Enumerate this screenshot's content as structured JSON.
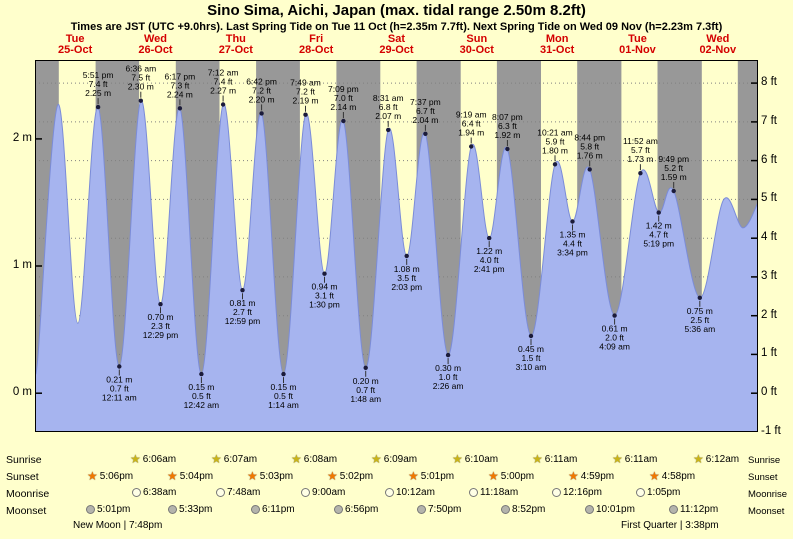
{
  "title": "Sino Sima, Aichi, Japan (max. tidal range 2.50m 8.2ft)",
  "subtitle": "Times are JST (UTC +9.0hrs). Last Spring Tide on Tue 11 Oct (h=2.35m 7.7ft). Next Spring Tide on Wed 09 Nov (h=2.23m 7.3ft)",
  "day_header": [
    {
      "weekday": "Tue",
      "date": "25-Oct"
    },
    {
      "weekday": "Wed",
      "date": "26-Oct"
    },
    {
      "weekday": "Thu",
      "date": "27-Oct"
    },
    {
      "weekday": "Fri",
      "date": "28-Oct"
    },
    {
      "weekday": "Sat",
      "date": "29-Oct"
    },
    {
      "weekday": "Sun",
      "date": "30-Oct"
    },
    {
      "weekday": "Mon",
      "date": "31-Oct"
    },
    {
      "weekday": "Tue",
      "date": "01-Nov"
    },
    {
      "weekday": "Wed",
      "date": "02-Nov"
    }
  ],
  "chart_data": {
    "type": "area",
    "x_range_hours": [
      0,
      216
    ],
    "y_range_m": [
      -0.305,
      2.62
    ],
    "y_axis_left_ticks": [
      "2 m",
      "1 m",
      "0 m"
    ],
    "y_axis_right_ticks": [
      "8 ft",
      "7 ft",
      "6 ft",
      "5 ft",
      "4 ft",
      "3 ft",
      "2 ft",
      "1 ft",
      "0 ft",
      "-1 ft"
    ],
    "grid": "dotted-per-foot",
    "legend": "none",
    "tide_events": [
      {
        "t": 18.85,
        "height_m": 2.25,
        "type": "high",
        "label_lines": [
          "5:51 pm",
          "7.4 ft",
          "2.25 m"
        ]
      },
      {
        "t": 25.18,
        "height_m": 0.21,
        "type": "low",
        "label_lines": [
          "0.21 m",
          "0.7 ft",
          "12:11 am"
        ]
      },
      {
        "t": 31.6,
        "height_m": 2.3,
        "type": "high",
        "label_lines": [
          "6:36 am",
          "7.5 ft",
          "2.30 m"
        ]
      },
      {
        "t": 37.48,
        "height_m": 0.7,
        "type": "low",
        "label_lines": [
          "0.70 m",
          "2.3 ft",
          "12:29 pm"
        ]
      },
      {
        "t": 43.28,
        "height_m": 2.24,
        "type": "high",
        "label_lines": [
          "6:17 pm",
          "7.3 ft",
          "2.24 m"
        ]
      },
      {
        "t": 49.7,
        "height_m": 0.15,
        "type": "low",
        "label_lines": [
          "0.15 m",
          "0.5 ft",
          "12:42 am"
        ]
      },
      {
        "t": 56.2,
        "height_m": 2.27,
        "type": "high",
        "label_lines": [
          "7:12 am",
          "7.4 ft",
          "2.27 m"
        ]
      },
      {
        "t": 61.98,
        "height_m": 0.81,
        "type": "low",
        "label_lines": [
          "0.81 m",
          "2.7 ft",
          "12:59 pm"
        ]
      },
      {
        "t": 67.7,
        "height_m": 2.2,
        "type": "high",
        "label_lines": [
          "6:42 pm",
          "7.2 ft",
          "2.20 m"
        ]
      },
      {
        "t": 74.23,
        "height_m": 0.15,
        "type": "low",
        "label_lines": [
          "0.15 m",
          "0.5 ft",
          "1:14 am"
        ]
      },
      {
        "t": 80.82,
        "height_m": 2.19,
        "type": "high",
        "label_lines": [
          "7:49 am",
          "7.2 ft",
          "2.19 m"
        ]
      },
      {
        "t": 86.5,
        "height_m": 0.94,
        "type": "low",
        "label_lines": [
          "0.94 m",
          "3.1 ft",
          "1:30 pm"
        ]
      },
      {
        "t": 92.15,
        "height_m": 2.14,
        "type": "high",
        "label_lines": [
          "7:09 pm",
          "7.0 ft",
          "2.14 m"
        ]
      },
      {
        "t": 98.8,
        "height_m": 0.2,
        "type": "low",
        "label_lines": [
          "0.20 m",
          "0.7 ft",
          "1:48 am"
        ]
      },
      {
        "t": 105.52,
        "height_m": 2.07,
        "type": "high",
        "label_lines": [
          "8:31 am",
          "6.8 ft",
          "2.07 m"
        ]
      },
      {
        "t": 111.05,
        "height_m": 1.08,
        "type": "low",
        "label_lines": [
          "1.08 m",
          "3.5 ft",
          "2:03 pm"
        ]
      },
      {
        "t": 116.62,
        "height_m": 2.04,
        "type": "high",
        "label_lines": [
          "7:37 pm",
          "6.7 ft",
          "2.04 m"
        ]
      },
      {
        "t": 123.43,
        "height_m": 0.3,
        "type": "low",
        "label_lines": [
          "0.30 m",
          "1.0 ft",
          "2:26 am"
        ]
      },
      {
        "t": 130.32,
        "height_m": 1.94,
        "type": "high",
        "label_lines": [
          "9:19 am",
          "6.4 ft",
          "1.94 m"
        ]
      },
      {
        "t": 135.68,
        "height_m": 1.22,
        "type": "low",
        "label_lines": [
          "1.22 m",
          "4.0 ft",
          "2:41 pm"
        ]
      },
      {
        "t": 141.12,
        "height_m": 1.92,
        "type": "high",
        "label_lines": [
          "8:07 pm",
          "6.3 ft",
          "1.92 m"
        ]
      },
      {
        "t": 148.17,
        "height_m": 0.45,
        "type": "low",
        "label_lines": [
          "0.45 m",
          "1.5 ft",
          "3:10 am"
        ]
      },
      {
        "t": 155.35,
        "height_m": 1.8,
        "type": "high",
        "label_lines": [
          "10:21 am",
          "5.9 ft",
          "1.80 m"
        ]
      },
      {
        "t": 160.57,
        "height_m": 1.35,
        "type": "low",
        "label_lines": [
          "1.35 m",
          "4.4 ft",
          "3:34 pm"
        ]
      },
      {
        "t": 165.73,
        "height_m": 1.76,
        "type": "high",
        "label_lines": [
          "8:44 pm",
          "5.8 ft",
          "1.76 m"
        ]
      },
      {
        "t": 173.15,
        "height_m": 0.61,
        "type": "low",
        "label_lines": [
          "0.61 m",
          "2.0 ft",
          "4:09 am"
        ]
      },
      {
        "t": 180.87,
        "height_m": 1.73,
        "type": "high",
        "label_lines": [
          "11:52 am",
          "5.7 ft",
          "1.73 m"
        ]
      },
      {
        "t": 186.32,
        "height_m": 1.42,
        "type": "low",
        "label_lines": [
          "1.42 m",
          "4.7 ft",
          "5:19 pm"
        ]
      },
      {
        "t": 190.82,
        "height_m": 1.59,
        "type": "high",
        "label_lines": [
          "9:49 pm",
          "5.2 ft",
          "1.59 m"
        ]
      },
      {
        "t": 198.6,
        "height_m": 0.75,
        "type": "low",
        "label_lines": [
          "0.75 m",
          "2.5 ft",
          "5:36 am"
        ]
      }
    ],
    "curve_shape_points": [
      [
        0,
        0.45
      ],
      [
        0.75,
        0.25
      ],
      [
        6.9,
        2.27
      ],
      [
        12.8,
        0.55
      ],
      [
        205.7,
        1.52
      ],
      [
        211.5,
        1.3
      ],
      [
        216,
        1.5
      ]
    ],
    "colors": {
      "day_band": "#ffffcc",
      "night_band": "#989898",
      "tide_fill": "#a6b4ef",
      "tide_stroke": "#7b8cd8",
      "date_text": "#d40000",
      "grid": "#808080",
      "dot": "#1b1b3a"
    }
  },
  "astro": {
    "left_labels": [
      "Sunrise",
      "Sunset",
      "Moonrise",
      "Moonset"
    ],
    "right_labels": [
      "Sunrise",
      "Sunset",
      "Moonrise",
      "Moonset"
    ],
    "rows": [
      {
        "name": "sunrise",
        "icon": "sunrise-star-icon",
        "glyph": "star",
        "color": "#c9b417",
        "events": [
          {
            "day": 2,
            "time": "6:06am"
          },
          {
            "day": 3,
            "time": "6:07am"
          },
          {
            "day": 4,
            "time": "6:08am"
          },
          {
            "day": 5,
            "time": "6:09am"
          },
          {
            "day": 6,
            "time": "6:10am"
          },
          {
            "day": 7,
            "time": "6:11am"
          },
          {
            "day": 8,
            "time": "6:11am"
          },
          {
            "day": 9,
            "time": "6:12am"
          }
        ]
      },
      {
        "name": "sunset",
        "icon": "sunset-star-icon",
        "glyph": "star",
        "color": "#f07800",
        "events": [
          {
            "day": 1,
            "time": "5:06pm"
          },
          {
            "day": 2,
            "time": "5:04pm"
          },
          {
            "day": 3,
            "time": "5:03pm"
          },
          {
            "day": 4,
            "time": "5:02pm"
          },
          {
            "day": 5,
            "time": "5:01pm"
          },
          {
            "day": 6,
            "time": "5:00pm"
          },
          {
            "day": 7,
            "time": "4:59pm"
          },
          {
            "day": 8,
            "time": "4:58pm"
          }
        ]
      },
      {
        "name": "moonrise",
        "icon": "moonrise-circle-icon",
        "glyph": "circle",
        "color": "#ffffe6",
        "events": [
          {
            "day": 2,
            "time": "6:38am"
          },
          {
            "day": 3,
            "time": "7:48am"
          },
          {
            "day": 4,
            "time": "9:00am"
          },
          {
            "day": 5,
            "time": "10:12am"
          },
          {
            "day": 6,
            "time": "11:18am"
          },
          {
            "day": 7,
            "time": "12:16pm"
          },
          {
            "day": 8,
            "time": "1:05pm"
          }
        ]
      },
      {
        "name": "moonset",
        "icon": "moonset-circle-icon",
        "glyph": "circle",
        "color": "#b4b4ac",
        "events": [
          {
            "day": 1,
            "time": "5:01pm"
          },
          {
            "day": 2,
            "time": "5:33pm"
          },
          {
            "day": 3,
            "time": "6:11pm"
          },
          {
            "day": 4,
            "time": "6:56pm"
          },
          {
            "day": 5,
            "time": "7:50pm"
          },
          {
            "day": 6,
            "time": "8:52pm"
          },
          {
            "day": 7,
            "time": "10:01pm"
          },
          {
            "day": 8,
            "time": "11:12pm"
          }
        ]
      }
    ]
  },
  "moon_phases": [
    {
      "label": "New Moon | 7:48pm",
      "day": 1,
      "time": "7:48pm"
    },
    {
      "label": "First Quarter | 3:38pm",
      "day": 8,
      "time": "3:38pm"
    }
  ]
}
